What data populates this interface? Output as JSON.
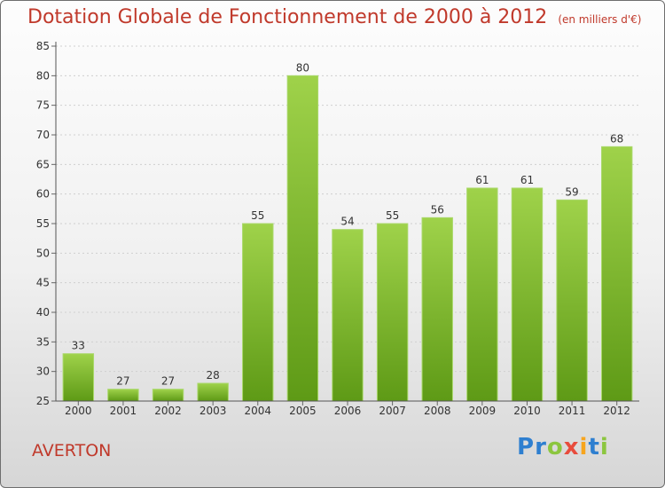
{
  "header": {
    "title": "Dotation Globale de Fonctionnement de 2000 à 2012",
    "subtitle": "(en milliers d'€)"
  },
  "town": "AVERTON",
  "logo": {
    "text": "Proxiti",
    "letters": [
      {
        "ch": "P",
        "color": "#2e7fd0"
      },
      {
        "ch": "r",
        "color": "#2e7fd0"
      },
      {
        "ch": "o",
        "color": "#8cc63f"
      },
      {
        "ch": "x",
        "color": "#e84c3d"
      },
      {
        "ch": "i",
        "color": "#f7a51e"
      },
      {
        "ch": "t",
        "color": "#2e7fd0"
      },
      {
        "ch": "i",
        "color": "#8cc63f"
      }
    ]
  },
  "chart_data": {
    "type": "bar",
    "title": "Dotation Globale de Fonctionnement de 2000 à 2012",
    "subtitle": "(en milliers d'€)",
    "categories": [
      "2000",
      "2001",
      "2002",
      "2003",
      "2004",
      "2005",
      "2006",
      "2007",
      "2008",
      "2009",
      "2010",
      "2011",
      "2012"
    ],
    "values": [
      33,
      27,
      27,
      28,
      55,
      80,
      54,
      55,
      56,
      61,
      61,
      59,
      68
    ],
    "ylim": [
      25,
      85
    ],
    "yticks": [
      25,
      30,
      35,
      40,
      45,
      50,
      55,
      60,
      65,
      70,
      75,
      80,
      85
    ],
    "grid": true,
    "bar_color": "#7cb52a"
  }
}
